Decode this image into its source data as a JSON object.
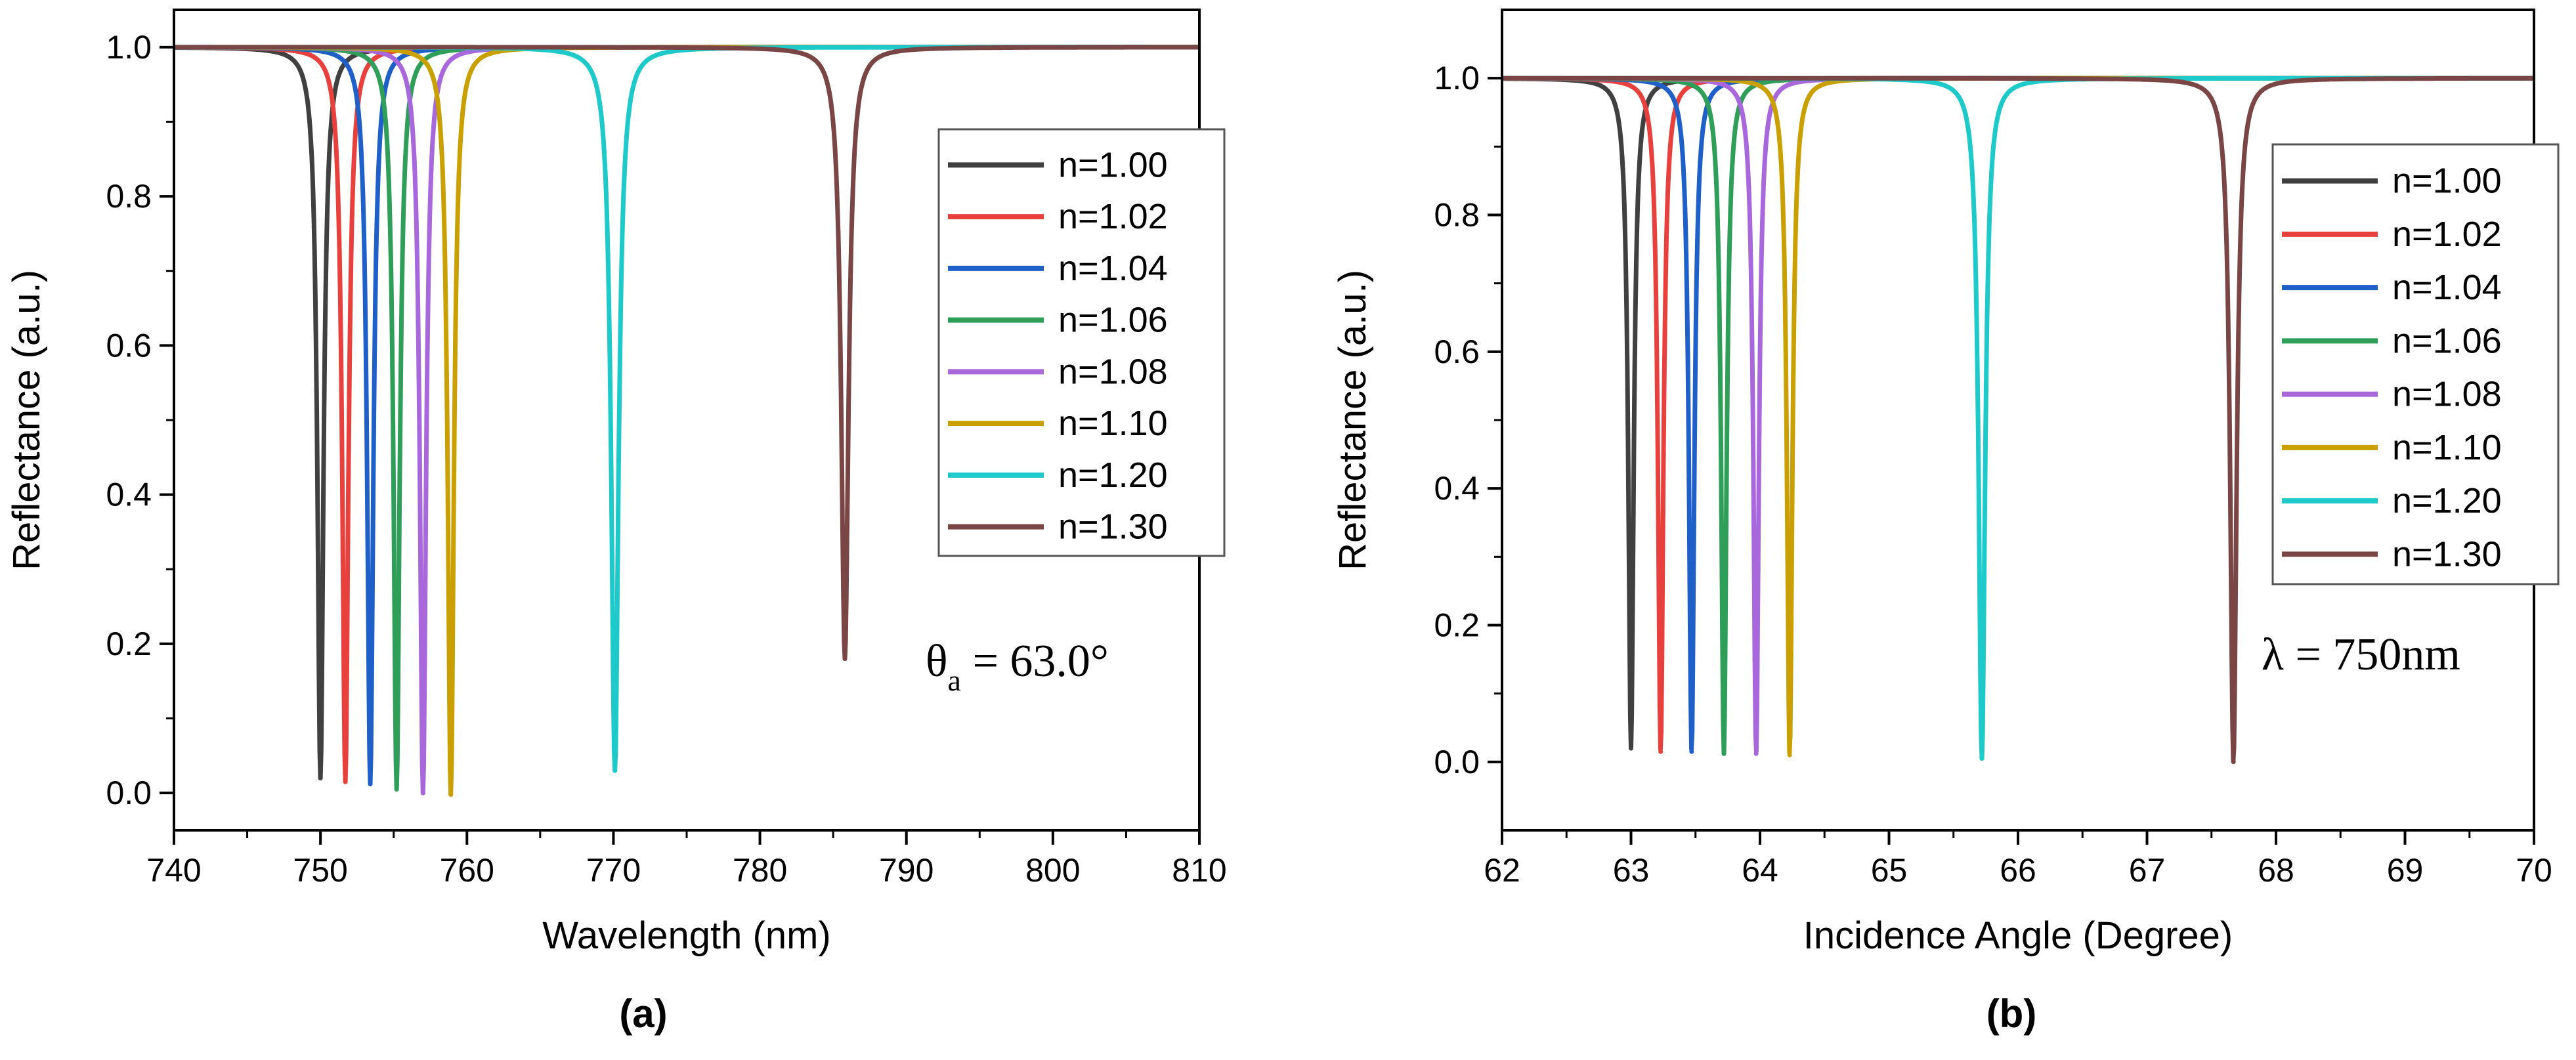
{
  "chart_data": [
    {
      "type": "line",
      "panel_label": "(a)",
      "xlabel": "Wavelength (nm)",
      "ylabel": "Reflectance (a.u.)",
      "xlim": [
        740,
        810
      ],
      "ylim": [
        -0.05,
        1.05
      ],
      "xticks": [
        "740",
        "750",
        "760",
        "770",
        "780",
        "790",
        "800",
        "810"
      ],
      "yticks": [
        "0.0",
        "0.2",
        "0.4",
        "0.6",
        "0.8",
        "1.0"
      ],
      "annotation": {
        "symbol": "θ",
        "subscript": "a",
        "text": " = 63.0°"
      },
      "legend_position": "top-right",
      "series": [
        {
          "name": "n=1.00",
          "color": "#404040",
          "resonance": 750.0,
          "min": 0.02,
          "width": 0.25
        },
        {
          "name": "n=1.02",
          "color": "#e8413d",
          "resonance": 751.7,
          "min": 0.015,
          "width": 0.25
        },
        {
          "name": "n=1.04",
          "color": "#1e5fc8",
          "resonance": 753.4,
          "min": 0.012,
          "width": 0.25
        },
        {
          "name": "n=1.06",
          "color": "#2e9e58",
          "resonance": 755.2,
          "min": 0.005,
          "width": 0.25
        },
        {
          "name": "n=1.08",
          "color": "#a868dc",
          "resonance": 757.0,
          "min": 0.0,
          "width": 0.25
        },
        {
          "name": "n=1.10",
          "color": "#c9a000",
          "resonance": 758.9,
          "min": -0.002,
          "width": 0.25
        },
        {
          "name": "n=1.20",
          "color": "#1ec9c9",
          "resonance": 770.1,
          "min": 0.03,
          "width": 0.3
        },
        {
          "name": "n=1.30",
          "color": "#7a4545",
          "resonance": 785.8,
          "min": 0.18,
          "width": 0.3
        }
      ]
    },
    {
      "type": "line",
      "panel_label": "(b)",
      "xlabel": "Incidence Angle (Degree)",
      "ylabel": "Reflectance (a.u.)",
      "xlim": [
        62,
        70
      ],
      "ylim": [
        -0.1,
        1.1
      ],
      "xticks": [
        "62",
        "63",
        "64",
        "65",
        "66",
        "67",
        "68",
        "69",
        "70"
      ],
      "yticks": [
        "0.0",
        "0.2",
        "0.4",
        "0.6",
        "0.8",
        "1.0"
      ],
      "annotation": {
        "symbol": "λ",
        "subscript": "",
        "text": " = 750nm"
      },
      "legend_position": "right",
      "series": [
        {
          "name": "n=1.00",
          "color": "#404040",
          "resonance": 63.0,
          "min": 0.02,
          "width": 0.025
        },
        {
          "name": "n=1.02",
          "color": "#e8413d",
          "resonance": 63.23,
          "min": 0.015,
          "width": 0.025
        },
        {
          "name": "n=1.04",
          "color": "#1e5fc8",
          "resonance": 63.47,
          "min": 0.015,
          "width": 0.025
        },
        {
          "name": "n=1.06",
          "color": "#2e9e58",
          "resonance": 63.72,
          "min": 0.012,
          "width": 0.025
        },
        {
          "name": "n=1.08",
          "color": "#a868dc",
          "resonance": 63.97,
          "min": 0.012,
          "width": 0.025
        },
        {
          "name": "n=1.10",
          "color": "#c9a000",
          "resonance": 64.23,
          "min": 0.01,
          "width": 0.025
        },
        {
          "name": "n=1.20",
          "color": "#1ec9c9",
          "resonance": 65.72,
          "min": 0.005,
          "width": 0.03
        },
        {
          "name": "n=1.30",
          "color": "#7a4545",
          "resonance": 67.67,
          "min": 0.0,
          "width": 0.03
        }
      ]
    }
  ]
}
